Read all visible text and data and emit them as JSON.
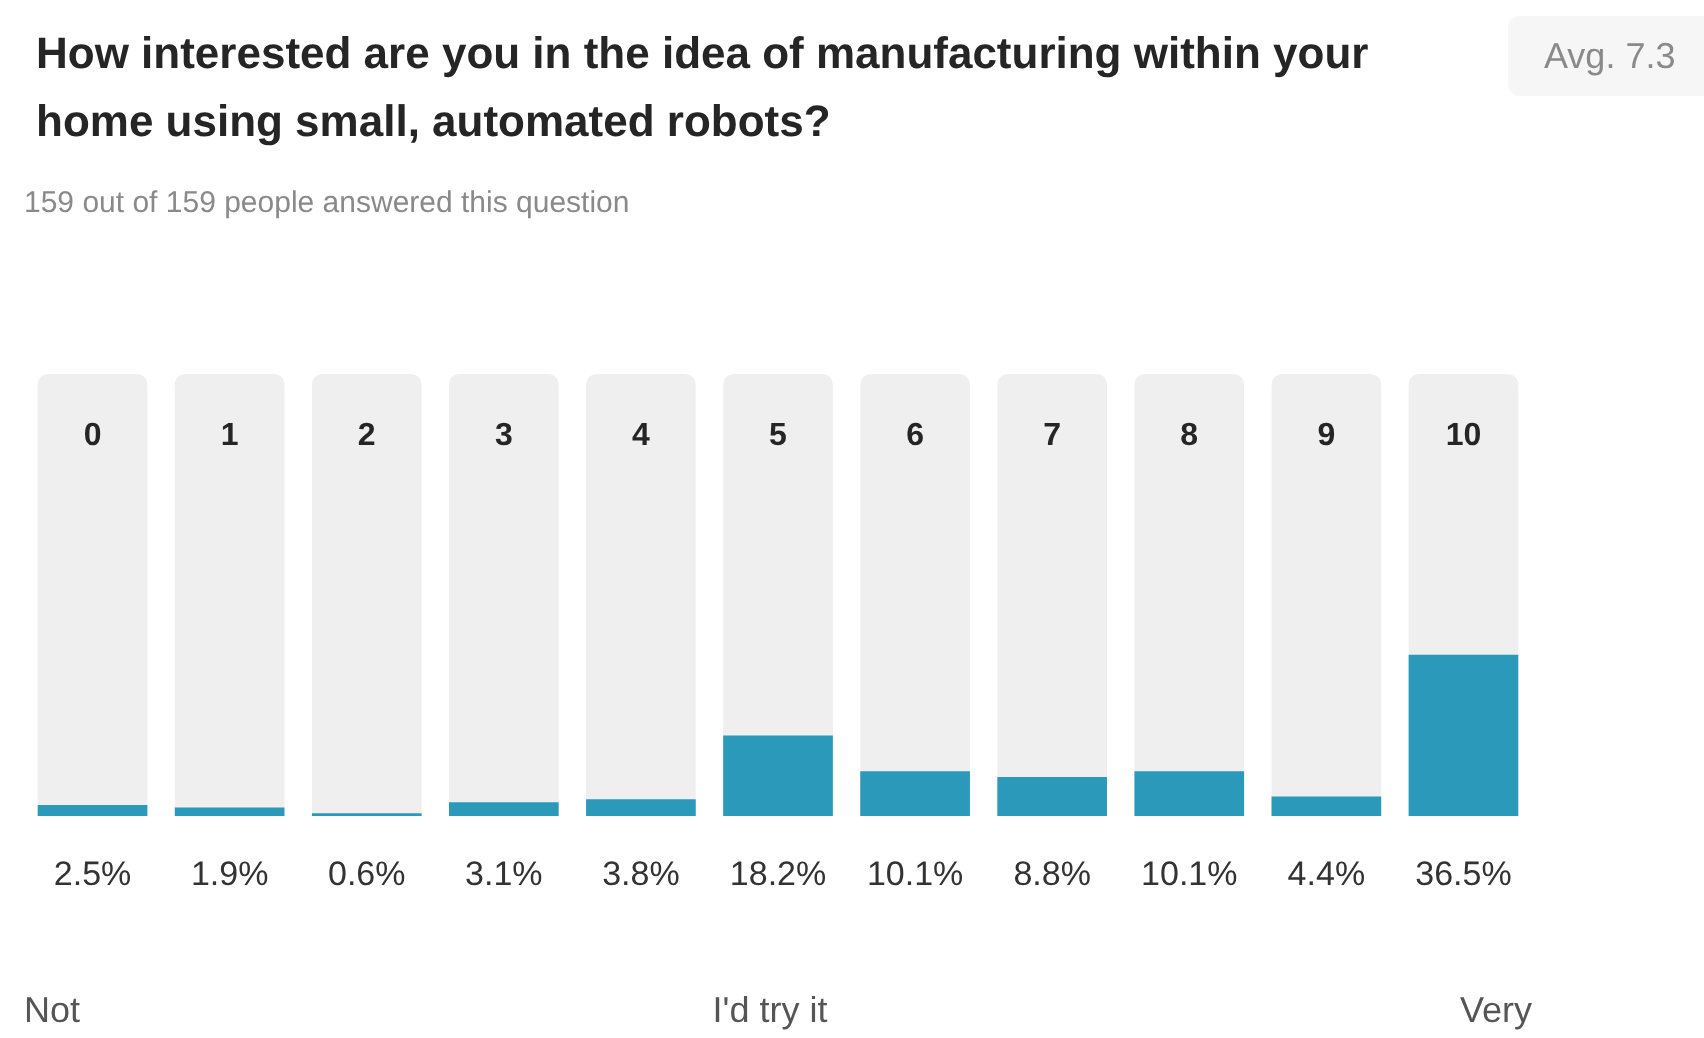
{
  "chart_data": {
    "type": "bar",
    "title": "How interested are you in the idea of manufacturing within your home using small, automated robots?",
    "subtitle": "159 out of 159 people answered this question",
    "categories": [
      "0",
      "1",
      "2",
      "3",
      "4",
      "5",
      "6",
      "7",
      "8",
      "9",
      "10"
    ],
    "values": [
      2.5,
      1.9,
      0.6,
      3.1,
      3.8,
      18.2,
      10.1,
      8.8,
      10.1,
      4.4,
      36.5
    ],
    "value_labels": [
      "2.5%",
      "1.9%",
      "0.6%",
      "3.1%",
      "3.8%",
      "18.2%",
      "10.1%",
      "8.8%",
      "10.1%",
      "4.4%",
      "36.5%"
    ],
    "color": "#2b9aba",
    "ylim": [
      0,
      100
    ],
    "tick_labels": "x",
    "legend": false,
    "annotations": [
      "Avg. 7.3",
      "Not",
      "I'd try it",
      "Very"
    ]
  }
}
